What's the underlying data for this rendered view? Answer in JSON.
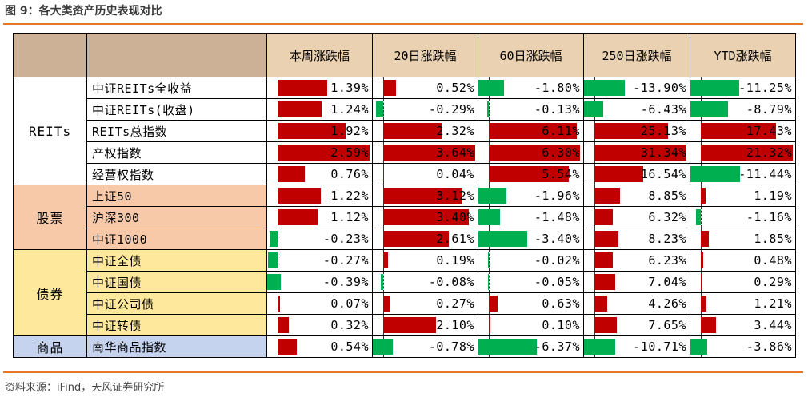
{
  "figure_title": "图 9：各大类资产历史表现对比",
  "source": "资料来源：iFind，天风证券研究所",
  "columns": [
    "本周涨跌幅",
    "20日涨跌幅",
    "60日涨跌幅",
    "250日涨跌幅",
    "YTD涨跌幅"
  ],
  "colors": {
    "positive_bar": "#c00000",
    "negative_bar": "#00b050",
    "rule": "#e6782a"
  },
  "column_max_abs": [
    2.59,
    3.64,
    6.37,
    31.34,
    21.32
  ],
  "sections": [
    {
      "name": "REITs",
      "style": "reits",
      "rows": [
        {
          "asset": "中证REITs全收益",
          "values": [
            1.39,
            0.52,
            -1.8,
            -13.9,
            -11.25
          ],
          "labels": [
            "1.39%",
            "0.52%",
            "-1.80%",
            "-13.90%",
            "-11.25%"
          ]
        },
        {
          "asset": "中证REITs(收盘)",
          "values": [
            1.24,
            -0.29,
            -0.13,
            -6.43,
            -8.79
          ],
          "labels": [
            "1.24%",
            "-0.29%",
            "-0.13%",
            "-6.43%",
            "-8.79%"
          ]
        },
        {
          "asset": "REITs总指数",
          "values": [
            1.92,
            2.32,
            6.11,
            25.13,
            17.43
          ],
          "labels": [
            "1.92%",
            "2.32%",
            "6.11%",
            "25.13%",
            "17.43%"
          ]
        },
        {
          "asset": "产权指数",
          "values": [
            2.59,
            3.64,
            6.3,
            31.34,
            21.32
          ],
          "labels": [
            "2.59%",
            "3.64%",
            "6.30%",
            "31.34%",
            "21.32%"
          ]
        },
        {
          "asset": "经营权指数",
          "values": [
            0.76,
            0.04,
            5.54,
            16.54,
            -11.44
          ],
          "labels": [
            "0.76%",
            "0.04%",
            "5.54%",
            "16.54%",
            "-11.44%"
          ]
        }
      ]
    },
    {
      "name": "股票",
      "style": "stock",
      "rows": [
        {
          "asset": "上证50",
          "values": [
            1.22,
            3.12,
            -1.96,
            8.85,
            1.19
          ],
          "labels": [
            "1.22%",
            "3.12%",
            "-1.96%",
            "8.85%",
            "1.19%"
          ]
        },
        {
          "asset": "沪深300",
          "values": [
            1.12,
            3.4,
            -1.48,
            6.32,
            -1.16
          ],
          "labels": [
            "1.12%",
            "3.40%",
            "-1.48%",
            "6.32%",
            "-1.16%"
          ]
        },
        {
          "asset": "中证1000",
          "values": [
            -0.23,
            2.61,
            -3.4,
            8.23,
            1.85
          ],
          "labels": [
            "-0.23%",
            "2.61%",
            "-3.40%",
            "8.23%",
            "1.85%"
          ]
        }
      ]
    },
    {
      "name": "债券",
      "style": "bond",
      "rows": [
        {
          "asset": "中证全债",
          "values": [
            -0.27,
            0.19,
            -0.02,
            6.23,
            0.48
          ],
          "labels": [
            "-0.27%",
            "0.19%",
            "-0.02%",
            "6.23%",
            "0.48%"
          ]
        },
        {
          "asset": "中证国债",
          "values": [
            -0.39,
            -0.08,
            -0.05,
            7.04,
            0.29
          ],
          "labels": [
            "-0.39%",
            "-0.08%",
            "-0.05%",
            "7.04%",
            "0.29%"
          ]
        },
        {
          "asset": "中证公司债",
          "values": [
            0.07,
            0.27,
            0.63,
            4.26,
            1.21
          ],
          "labels": [
            "0.07%",
            "0.27%",
            "0.63%",
            "4.26%",
            "1.21%"
          ]
        },
        {
          "asset": "中证转债",
          "values": [
            0.32,
            2.1,
            0.1,
            7.65,
            3.44
          ],
          "labels": [
            "0.32%",
            "2.10%",
            "0.10%",
            "7.65%",
            "3.44%"
          ]
        }
      ]
    },
    {
      "name": "商品",
      "style": "comm",
      "rows": [
        {
          "asset": "南华商品指数",
          "values": [
            0.54,
            -0.78,
            -6.37,
            -10.71,
            -3.86
          ],
          "labels": [
            "0.54%",
            "-0.78%",
            "-6.37%",
            "-10.71%",
            "-3.86%"
          ]
        }
      ]
    }
  ]
}
